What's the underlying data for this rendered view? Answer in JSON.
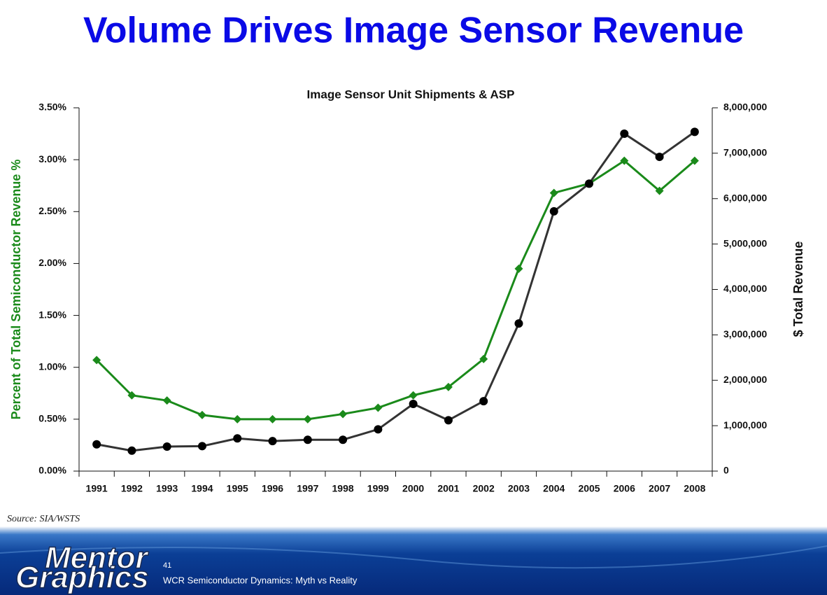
{
  "slide": {
    "title": "Volume Drives Image Sensor Revenue",
    "source": "Source:  SIA/WSTS",
    "page_number": "41",
    "footer_text": "WCR Semiconductor Dynamics: Myth vs Reality",
    "logo": [
      "Mentor",
      "Graphics"
    ]
  },
  "chart_data": {
    "type": "line",
    "title": "Image Sensor Unit Shipments & ASP",
    "y_label": "Percent of Total Semiconductor Revenue %",
    "y2_label": "$ Total Revenue",
    "categories": [
      "1991",
      "1992",
      "1993",
      "1994",
      "1995",
      "1996",
      "1997",
      "1998",
      "1999",
      "2000",
      "2001",
      "2002",
      "2003",
      "2004",
      "2005",
      "2006",
      "2007",
      "2008"
    ],
    "series": [
      {
        "color": "#1a8a1a",
        "marker": "diamond",
        "axis": "y",
        "values": [
          1.07,
          0.73,
          0.68,
          0.54,
          0.5,
          0.5,
          0.5,
          0.55,
          0.61,
          0.73,
          0.81,
          1.08,
          1.95,
          2.68,
          2.77,
          2.99,
          2.7,
          2.99
        ]
      },
      {
        "color": "#333333",
        "marker": "circle",
        "axis": "y2",
        "values": [
          590000,
          450000,
          540000,
          550000,
          720000,
          660000,
          690000,
          690000,
          920000,
          1480000,
          1120000,
          1540000,
          3250000,
          5720000,
          6330000,
          7430000,
          6920000,
          7470000
        ]
      }
    ],
    "ylim": [
      0,
      3.5
    ],
    "yticks": [
      {
        "value": 0,
        "label": "0.00%"
      },
      {
        "value": 0.5,
        "label": "0.50%"
      },
      {
        "value": 1,
        "label": "1.00%"
      },
      {
        "value": 1.5,
        "label": "1.50%"
      },
      {
        "value": 2,
        "label": "2.00%"
      },
      {
        "value": 2.5,
        "label": "2.50%"
      },
      {
        "value": 3,
        "label": "3.00%"
      },
      {
        "value": 3.5,
        "label": "3.50%"
      }
    ],
    "y2lim": [
      0,
      8000000
    ],
    "y2ticks": [
      0,
      {
        "value": 1000000,
        "label": "1,000,000"
      },
      {
        "value": 2000000,
        "label": "2,000,000"
      },
      {
        "value": 3000000,
        "label": "3,000,000"
      },
      {
        "value": 4000000,
        "label": "4,000,000"
      },
      {
        "value": 5000000,
        "label": "5,000,000"
      },
      {
        "value": 6000000,
        "label": "6,000,000"
      },
      {
        "value": 7000000,
        "label": "7,000,000"
      },
      {
        "value": 8000000,
        "label": "8,000,000"
      }
    ],
    "grid": false,
    "y_label_color": "#1a8a1a"
  }
}
